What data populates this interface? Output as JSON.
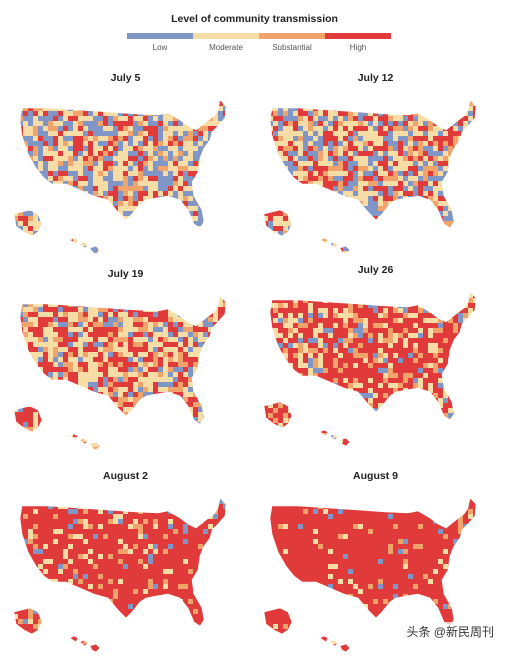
{
  "legend": {
    "title": "Level of community transmission",
    "levels": [
      {
        "label": "Low",
        "color": "#7f96c6"
      },
      {
        "label": "Moderate",
        "color": "#f5dda5"
      },
      {
        "label": "Substantial",
        "color": "#f0a46c"
      },
      {
        "label": "High",
        "color": "#e03a3a"
      }
    ]
  },
  "maps": [
    {
      "date": "July 5",
      "mix": [
        0.3,
        0.37,
        0.13,
        0.2
      ]
    },
    {
      "date": "July 12",
      "mix": [
        0.25,
        0.34,
        0.14,
        0.27
      ]
    },
    {
      "date": "July 19",
      "mix": [
        0.15,
        0.34,
        0.16,
        0.35
      ]
    },
    {
      "date": "July 26",
      "mix": [
        0.1,
        0.22,
        0.14,
        0.54
      ]
    },
    {
      "date": "August 2",
      "mix": [
        0.04,
        0.1,
        0.08,
        0.78
      ]
    },
    {
      "date": "August 9",
      "mix": [
        0.03,
        0.06,
        0.05,
        0.86
      ]
    }
  ],
  "watermark": "头条 @新民周刊"
}
